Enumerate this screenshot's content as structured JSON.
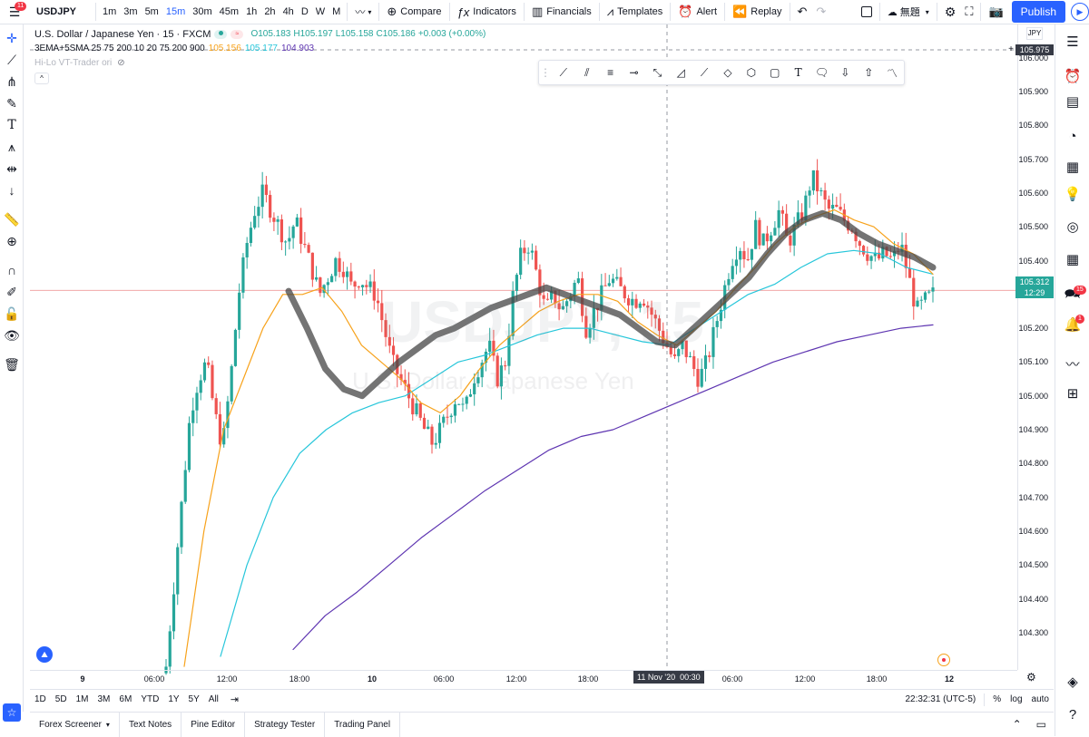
{
  "topbar": {
    "menu_badge": "11",
    "symbol": "USDJPY",
    "intervals": [
      "1m",
      "3m",
      "5m",
      "15m",
      "30m",
      "45m",
      "1h",
      "2h",
      "4h",
      "D",
      "W",
      "M"
    ],
    "active_interval": "15m",
    "compare_label": "Compare",
    "indicators_label": "Indicators",
    "financials_label": "Financials",
    "templates_label": "Templates",
    "alert_label": "Alert",
    "replay_label": "Replay",
    "layout_name": "無題",
    "publish_label": "Publish"
  },
  "legend": {
    "title": "U.S. Dollar / Japanese Yen · 15 · FXCM",
    "ohlc": {
      "o": "O105.183",
      "h": "H105.197",
      "l": "L105.158",
      "c": "C105.186",
      "chg": "+0.003 (+0.00%)"
    },
    "indicator_name": "3EMA+5SMA 25 75 200 10 20 75 200 900",
    "indicator_values": [
      {
        "value": "105.156",
        "color": "#f7a21b"
      },
      {
        "value": "105.177",
        "color": "#26c6da"
      },
      {
        "value": "104.903",
        "color": "#5e35b1"
      }
    ],
    "hilo_label": "Hi-Lo VT-Trader ori"
  },
  "watermark": {
    "symbol": "USDJPY, 15",
    "name": "U.S. Dollar / Japanese Yen"
  },
  "price_axis": {
    "currency": "JPY",
    "ticks": [
      "106.000",
      "105.900",
      "105.800",
      "105.700",
      "105.600",
      "105.500",
      "105.400",
      "105.200",
      "105.100",
      "105.000",
      "104.900",
      "104.800",
      "104.700",
      "104.600",
      "104.500",
      "104.400",
      "104.300"
    ],
    "crosshair_price": "105.975",
    "last_price": "105.312",
    "countdown": "12:29"
  },
  "time_axis": {
    "ticks": [
      "9",
      "06:00",
      "12:00",
      "18:00",
      "10",
      "06:00",
      "12:00",
      "18:00",
      "06:00",
      "12:00",
      "18:00",
      "12"
    ],
    "crosshair_label": "11 Nov '20  00:30"
  },
  "ranges": [
    "1D",
    "5D",
    "1M",
    "3M",
    "6M",
    "YTD",
    "1Y",
    "5Y",
    "All"
  ],
  "status": {
    "time": "22:32:31 (UTC-5)",
    "percent": "%",
    "log": "log",
    "auto": "auto"
  },
  "panels": [
    "Forex Screener",
    "Text Notes",
    "Pine Editor",
    "Strategy Tester",
    "Trading Panel"
  ],
  "right_badges": {
    "chat": "15",
    "alerts": "1"
  },
  "colors": {
    "up": "#26a69a",
    "down": "#ef5350",
    "ema25": "#f7a21b",
    "ema75": "#26c6da",
    "ema200": "#5e35b1",
    "accent": "#2962ff"
  },
  "chart_data": {
    "type": "candlestick",
    "symbol": "USDJPY",
    "interval": "15",
    "ylim": [
      104.23,
      106.05
    ],
    "close_path": [
      104.2,
      104.45,
      104.7,
      104.95,
      105.05,
      105.1,
      104.95,
      104.85,
      105.05,
      105.3,
      105.45,
      105.55,
      105.6,
      105.55,
      105.5,
      105.45,
      105.52,
      105.45,
      105.38,
      105.3,
      105.35,
      105.4,
      105.38,
      105.32,
      105.35,
      105.32,
      105.3,
      105.2,
      105.1,
      105.05,
      105.0,
      104.95,
      104.9,
      104.86,
      104.9,
      104.95,
      105.0,
      104.95,
      105.05,
      105.1,
      105.15,
      105.05,
      105.1,
      105.3,
      105.42,
      105.45,
      105.35,
      105.25,
      105.3,
      105.25,
      105.3,
      105.35,
      105.2,
      105.25,
      105.3,
      105.35,
      105.32,
      105.3,
      105.28,
      105.3,
      105.25,
      105.2,
      105.15,
      105.1,
      105.15,
      105.1,
      105.05,
      105.1,
      105.2,
      105.3,
      105.4,
      105.45,
      105.4,
      105.5,
      105.45,
      105.5,
      105.55,
      105.45,
      105.5,
      105.55,
      105.65,
      105.6,
      105.55,
      105.55,
      105.52,
      105.5,
      105.45,
      105.42,
      105.4,
      105.42,
      105.4,
      105.45,
      105.35,
      105.25,
      105.28,
      105.3
    ],
    "ema25_path": [
      104.2,
      104.6,
      104.9,
      105.05,
      105.2,
      105.3,
      105.3,
      105.32,
      105.25,
      105.15,
      105.1,
      105.05,
      104.98,
      104.95,
      105.0,
      105.08,
      105.15,
      105.2,
      105.25,
      105.28,
      105.3,
      105.3,
      105.28,
      105.22,
      105.18,
      105.15,
      105.2,
      105.25,
      105.32,
      105.38,
      105.45,
      105.5,
      105.53,
      105.55,
      105.52,
      105.5,
      105.45,
      105.42,
      105.36
    ],
    "ema75_path": [
      104.23,
      104.5,
      104.7,
      104.83,
      104.9,
      104.95,
      104.98,
      105.0,
      105.05,
      105.1,
      105.12,
      105.15,
      105.18,
      105.2,
      105.2,
      105.18,
      105.16,
      105.15,
      105.2,
      105.25,
      105.3,
      105.33,
      105.38,
      105.42,
      105.43,
      105.42,
      105.38,
      105.36
    ],
    "ema200_path": [
      104.25,
      104.35,
      104.42,
      104.5,
      104.58,
      104.65,
      104.72,
      104.78,
      104.84,
      104.88,
      104.9,
      104.94,
      104.98,
      105.02,
      105.06,
      105.1,
      105.13,
      105.16,
      105.18,
      105.2,
      105.21
    ],
    "hilo_path": [
      105.31,
      105.2,
      105.08,
      105.02,
      105.0,
      105.05,
      105.1,
      105.14,
      105.18,
      105.2,
      105.23,
      105.26,
      105.28,
      105.3,
      105.32,
      105.3,
      105.28,
      105.26,
      105.24,
      105.2,
      105.16,
      105.15,
      105.2,
      105.25,
      105.3,
      105.35,
      105.42,
      105.48,
      105.52,
      105.54,
      105.52,
      105.48,
      105.45,
      105.43,
      105.41,
      105.38
    ]
  }
}
